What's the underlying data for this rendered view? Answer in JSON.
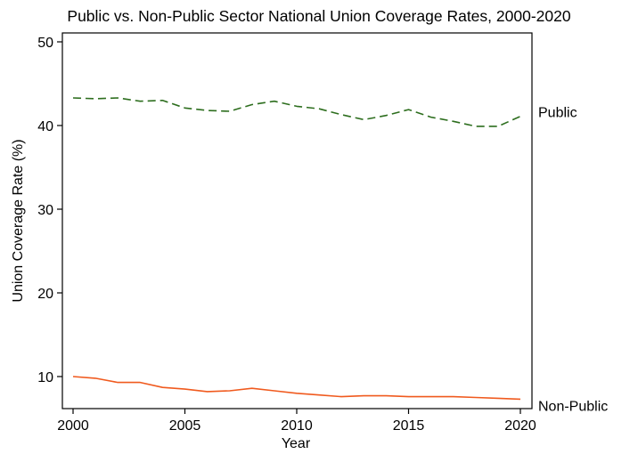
{
  "chart_data": {
    "type": "line",
    "title": "Public vs. Non-Public Sector National Union Coverage Rates, 2000-2020",
    "xlabel": "Year",
    "ylabel": "Union Coverage Rate (%)",
    "xlim": [
      2000,
      2020
    ],
    "ylim": [
      6.5,
      51
    ],
    "xticks": [
      "2000",
      "2005",
      "2010",
      "2015",
      "2020"
    ],
    "yticks": [
      "10",
      "20",
      "30",
      "40",
      "50"
    ],
    "x": [
      2000,
      2001,
      2002,
      2003,
      2004,
      2005,
      2006,
      2007,
      2008,
      2009,
      2010,
      2011,
      2012,
      2013,
      2014,
      2015,
      2016,
      2017,
      2018,
      2019,
      2020
    ],
    "grid": false,
    "legend": "none",
    "series": [
      {
        "name": "Public",
        "color": "#2d6e1e",
        "dash": "dashed",
        "values": [
          43.3,
          43.2,
          43.3,
          42.9,
          43.0,
          42.1,
          41.8,
          41.7,
          42.5,
          42.9,
          42.3,
          42.0,
          41.3,
          40.7,
          41.2,
          41.9,
          41.0,
          40.5,
          39.9,
          39.9,
          41.1
        ]
      },
      {
        "name": "Non-Public",
        "color": "#f05a1e",
        "dash": "solid",
        "values": [
          10.0,
          9.8,
          9.3,
          9.3,
          8.7,
          8.5,
          8.2,
          8.3,
          8.6,
          8.3,
          8.0,
          7.8,
          7.6,
          7.7,
          7.7,
          7.6,
          7.6,
          7.6,
          7.5,
          7.4,
          7.3
        ]
      }
    ]
  }
}
